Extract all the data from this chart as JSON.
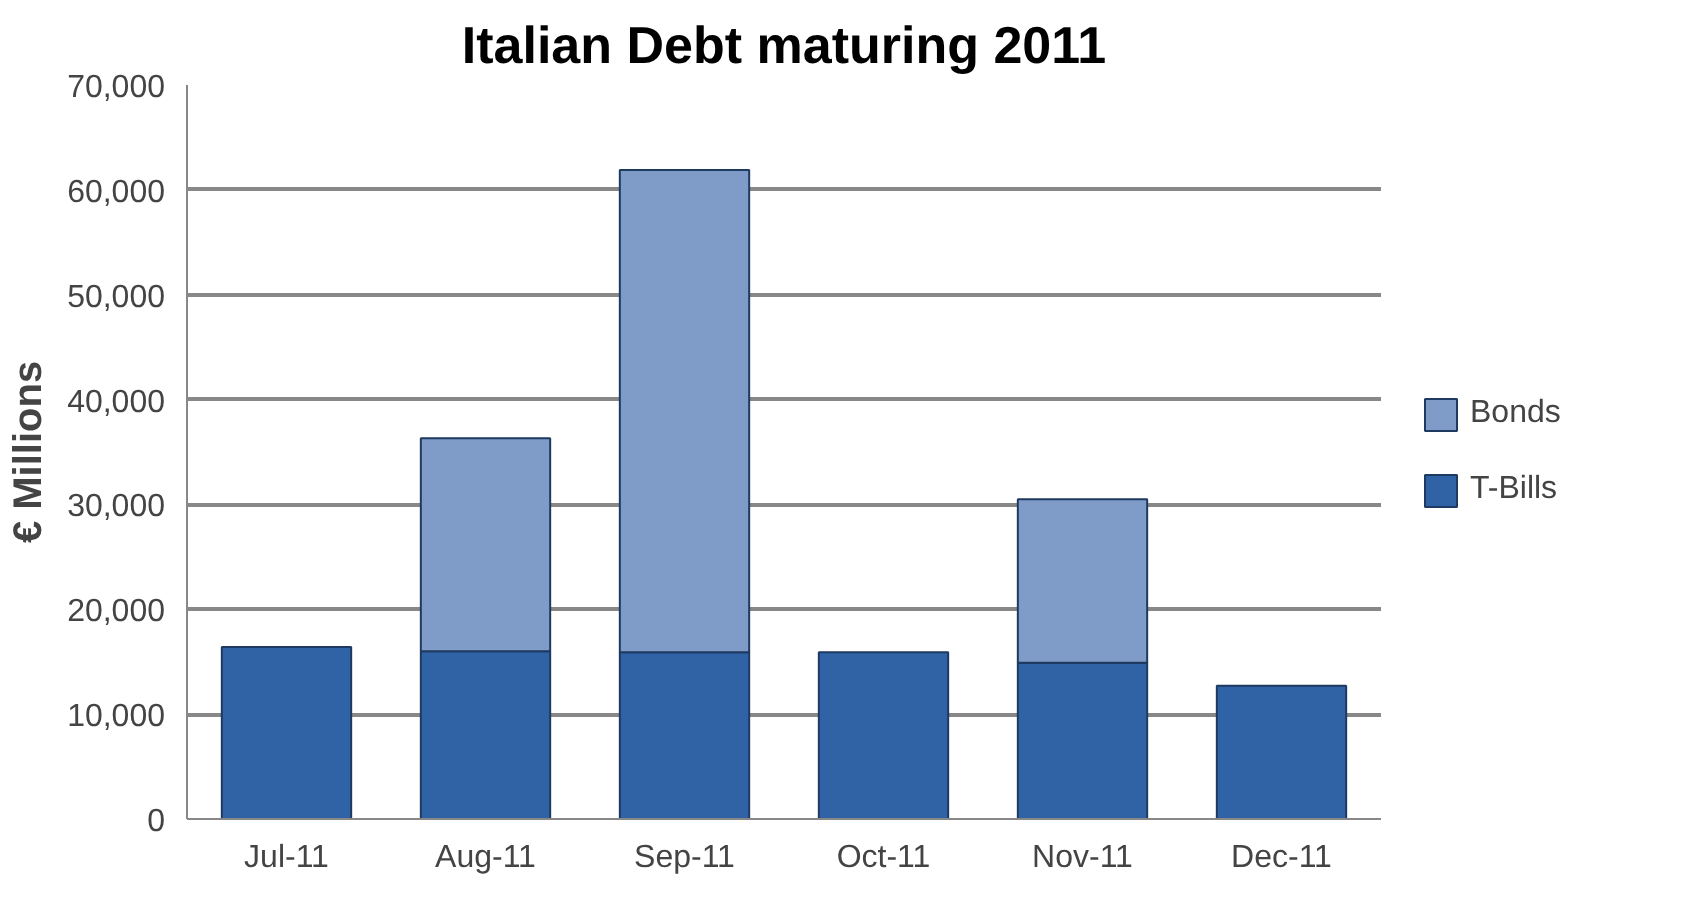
{
  "chart_data": {
    "type": "bar",
    "title": "Italian Debt maturing 2011",
    "ylabel": "€ Millions",
    "categories": [
      "Jul-11",
      "Aug-11",
      "Sep-11",
      "Oct-11",
      "Nov-11",
      "Dec-11"
    ],
    "stacked": true,
    "series": [
      {
        "name": "T-Bills",
        "color": "#2f63a6",
        "values": [
          16400,
          16000,
          15900,
          15900,
          14900,
          12700
        ]
      },
      {
        "name": "Bonds",
        "color": "#7f9cc9",
        "values": [
          null,
          20300,
          46000,
          null,
          15600,
          null
        ]
      }
    ],
    "ylim": [
      0,
      70000
    ],
    "yticks": [
      {
        "value": 0,
        "label": "0"
      },
      {
        "value": 10000,
        "label": "10,000"
      },
      {
        "value": 20000,
        "label": "20,000"
      },
      {
        "value": 30000,
        "label": "30,000"
      },
      {
        "value": 40000,
        "label": "40,000"
      },
      {
        "value": 50000,
        "label": "50,000"
      },
      {
        "value": 60000,
        "label": "60,000"
      },
      {
        "value": 70000,
        "label": "70,000"
      }
    ],
    "grid": "y",
    "legend": "right"
  }
}
